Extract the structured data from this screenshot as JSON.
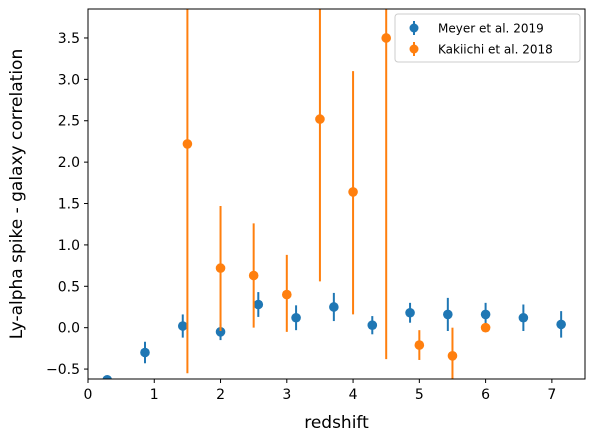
{
  "chart_data": {
    "type": "scatter",
    "xlabel": "redshift",
    "ylabel": "Ly-alpha spike - galaxy correlation",
    "xlim": [
      0,
      7.5
    ],
    "ylim": [
      -0.62,
      3.85
    ],
    "xticks": [
      0,
      1,
      2,
      3,
      4,
      5,
      6,
      7
    ],
    "yticks": [
      -0.5,
      0.0,
      0.5,
      1.0,
      1.5,
      2.0,
      2.5,
      3.0,
      3.5
    ],
    "xtick_labels": [
      "0",
      "1",
      "2",
      "3",
      "4",
      "5",
      "6",
      "7"
    ],
    "ytick_labels": [
      "−0.5",
      "0.0",
      "0.5",
      "1.0",
      "1.5",
      "2.0",
      "2.5",
      "3.0",
      "3.5"
    ],
    "grid": false,
    "legend_position": "top-right",
    "series": [
      {
        "name": "Meyer et al. 2019",
        "color": "#1f77b4",
        "x": [
          0.29,
          0.86,
          1.43,
          2.0,
          2.57,
          3.14,
          3.71,
          4.29,
          4.86,
          5.43,
          6.0,
          6.57,
          7.14
        ],
        "y": [
          -0.63,
          -0.3,
          0.02,
          -0.05,
          0.28,
          0.12,
          0.25,
          0.03,
          0.18,
          0.16,
          0.16,
          0.12,
          0.04
        ],
        "yerr": [
          0.02,
          0.13,
          0.14,
          0.1,
          0.15,
          0.15,
          0.17,
          0.11,
          0.12,
          0.2,
          0.14,
          0.16,
          0.16
        ]
      },
      {
        "name": "Kakiichi et al. 2018",
        "color": "#ff7f0e",
        "x": [
          1.5,
          2.0,
          2.5,
          3.0,
          3.5,
          4.0,
          4.5,
          5.0,
          5.5,
          6.0
        ],
        "y": [
          2.22,
          0.72,
          0.63,
          0.4,
          2.52,
          1.64,
          3.5,
          -0.21,
          -0.34,
          0.0
        ],
        "yerr_low": [
          2.77,
          0.76,
          0.63,
          0.45,
          1.96,
          1.48,
          3.88,
          0.18,
          0.35,
          0.0
        ],
        "yerr_high": [
          2.0,
          0.75,
          0.63,
          0.48,
          1.8,
          1.46,
          1.0,
          0.18,
          0.34,
          0.0
        ]
      }
    ]
  }
}
